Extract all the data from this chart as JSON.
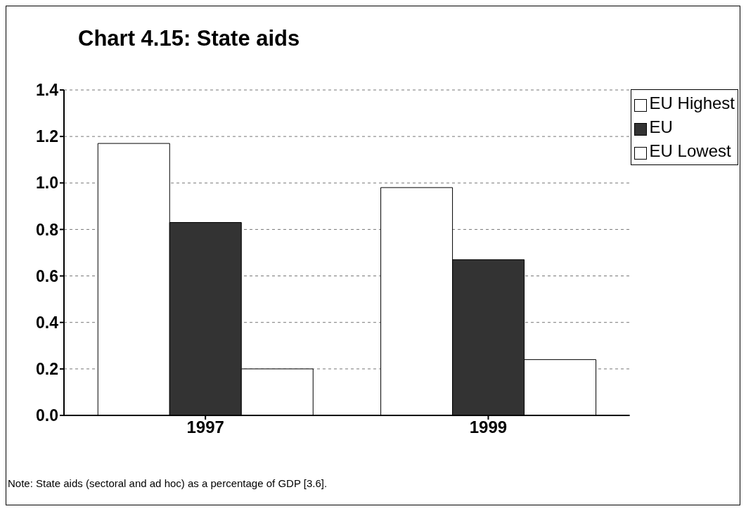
{
  "chart_data": {
    "type": "bar",
    "title": "Chart 4.15: State aids",
    "categories": [
      "1997",
      "1999"
    ],
    "series": [
      {
        "name": "EU Highest",
        "color": "#ffffff",
        "values": [
          1.17,
          0.98
        ]
      },
      {
        "name": "EU",
        "color": "#333333",
        "values": [
          0.83,
          0.67
        ]
      },
      {
        "name": "EU Lowest",
        "color": "#ffffff",
        "values": [
          0.2,
          0.24
        ]
      }
    ],
    "ylim": [
      0,
      1.4
    ],
    "yticks": [
      {
        "value": 0,
        "label": "0.0"
      },
      0.2,
      0.4,
      0.6,
      0.8,
      {
        "value": 1,
        "label": "1.0"
      },
      1.2,
      1.4
    ],
    "grid": "y",
    "legend": "top right",
    "annotations": [
      "Note: State aids (sectoral and ad hoc) as a percentage of GDP [3.6]."
    ]
  }
}
